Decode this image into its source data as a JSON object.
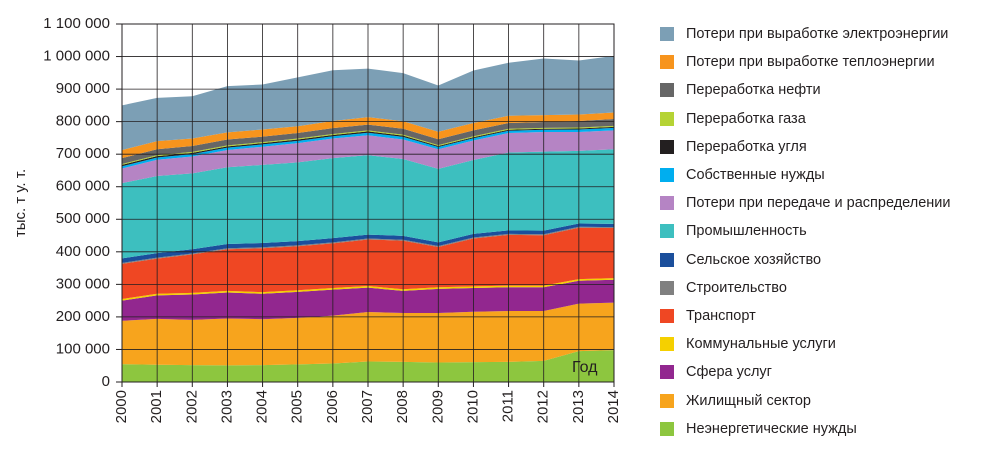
{
  "chart_data": {
    "type": "area",
    "stacked": true,
    "ylabel": "тыс. т у. т.",
    "xlabel": "Год",
    "ylim": [
      0,
      1100000
    ],
    "y_ticks": [
      "0",
      "100 000",
      "200 000",
      "300 000",
      "400 000",
      "500 000",
      "600 000",
      "700 000",
      "800 000",
      "900 000",
      "1 000 000",
      "1 100 000"
    ],
    "y_tick_values": [
      0,
      100000,
      200000,
      300000,
      400000,
      500000,
      600000,
      700000,
      800000,
      900000,
      1000000,
      1100000
    ],
    "x": [
      "2000",
      "2001",
      "2002",
      "2003",
      "2004",
      "2005",
      "2006",
      "2007",
      "2008",
      "2009",
      "2010",
      "2011",
      "2012",
      "2013",
      "2014"
    ],
    "grid": true,
    "legend_position": "right",
    "series": [
      {
        "name": "Неэнергетические нужды",
        "color": "#8dc63f",
        "values": [
          55000,
          53000,
          52000,
          51000,
          52000,
          54000,
          57000,
          63000,
          62000,
          60000,
          61000,
          62000,
          65000,
          95000,
          98000
        ]
      },
      {
        "name": "Жилищный сектор",
        "color": "#f7a41d",
        "values": [
          133000,
          141000,
          139000,
          144000,
          141000,
          143000,
          147000,
          152000,
          150000,
          152000,
          155000,
          156000,
          153000,
          146000,
          146000
        ]
      },
      {
        "name": "Сфера услуг",
        "color": "#92278f",
        "values": [
          62000,
          72000,
          78000,
          80000,
          78000,
          80000,
          80000,
          75000,
          68000,
          74000,
          73000,
          73000,
          73000,
          70000,
          70000
        ]
      },
      {
        "name": "Коммунальные услуги",
        "color": "#f5d000",
        "values": [
          5000,
          5000,
          5000,
          5000,
          5000,
          5000,
          5000,
          5000,
          5000,
          5000,
          5000,
          5000,
          5000,
          5000,
          5000
        ]
      },
      {
        "name": "Транспорт",
        "color": "#ef4723",
        "values": [
          108000,
          108000,
          118000,
          128000,
          135000,
          135000,
          137000,
          143000,
          149000,
          124000,
          147000,
          156000,
          155000,
          158000,
          154000
        ]
      },
      {
        "name": "Строительство",
        "color": "#808080",
        "values": [
          3000,
          3000,
          3000,
          3000,
          3000,
          3000,
          3000,
          3000,
          3000,
          3000,
          3000,
          3000,
          3000,
          3000,
          3000
        ]
      },
      {
        "name": "Сельское хозяйство",
        "color": "#1b4f9c",
        "values": [
          14000,
          14000,
          13000,
          13000,
          13000,
          13000,
          13000,
          12000,
          12000,
          11000,
          11000,
          11000,
          11000,
          10000,
          10000
        ]
      },
      {
        "name": "Промышленность",
        "color": "#3dbfbf",
        "values": [
          231000,
          237000,
          233000,
          236000,
          240000,
          242000,
          246000,
          244000,
          236000,
          226000,
          227000,
          239000,
          243000,
          223000,
          229000
        ]
      },
      {
        "name": "Потери при передаче и распределении",
        "color": "#b584c4",
        "values": [
          45000,
          50000,
          52000,
          53000,
          56000,
          59000,
          60000,
          61000,
          60000,
          60000,
          60000,
          60000,
          60000,
          58000,
          58000
        ]
      },
      {
        "name": "Собственные нужды",
        "color": "#00aeef",
        "values": [
          7000,
          7000,
          7000,
          7000,
          7000,
          7000,
          7000,
          8000,
          8000,
          7000,
          7000,
          7000,
          7000,
          8000,
          8000
        ]
      },
      {
        "name": "Переработка угля",
        "color": "#231f20",
        "values": [
          4000,
          4000,
          4000,
          4000,
          4000,
          4000,
          4000,
          4000,
          4000,
          3000,
          3000,
          3000,
          3000,
          3000,
          3000
        ]
      },
      {
        "name": "Переработка газа",
        "color": "#b5d334",
        "values": [
          3000,
          3000,
          3000,
          3000,
          3000,
          3000,
          3000,
          3000,
          3000,
          3000,
          3000,
          3000,
          3000,
          3000,
          3000
        ]
      },
      {
        "name": "Переработка нефти",
        "color": "#666666",
        "values": [
          18000,
          18000,
          18000,
          18000,
          17000,
          17000,
          18000,
          18000,
          18000,
          18000,
          18000,
          18000,
          18000,
          20000,
          21000
        ]
      },
      {
        "name": "Потери при выработке теплоэнергии",
        "color": "#f7941d",
        "values": [
          25000,
          25000,
          23000,
          22000,
          22000,
          21000,
          22000,
          23000,
          23000,
          23000,
          23000,
          22000,
          21000,
          20000,
          20000
        ]
      },
      {
        "name": "Потери при выработке электроэнергии",
        "color": "#7c9fb5",
        "values": [
          137000,
          133000,
          130000,
          142000,
          138000,
          150000,
          156000,
          149000,
          148000,
          142000,
          161000,
          163000,
          174000,
          166000,
          174000
        ]
      }
    ]
  }
}
